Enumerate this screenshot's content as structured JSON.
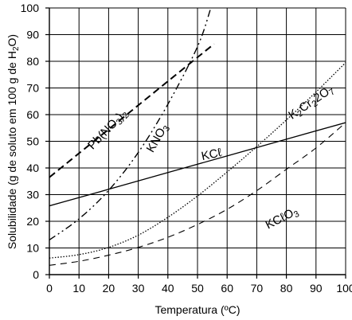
{
  "chart_data": {
    "type": "line",
    "title": "",
    "xlabel": "Temperatura (ºC)",
    "ylabel_parts": [
      "Solubilidade (g de soluto em 100 g de H",
      "2",
      "O)"
    ],
    "xlim": [
      0,
      100
    ],
    "ylim": [
      0,
      100
    ],
    "x_ticks": [
      0,
      10,
      20,
      30,
      40,
      50,
      60,
      70,
      80,
      90,
      100
    ],
    "y_ticks": [
      0,
      10,
      20,
      30,
      40,
      50,
      60,
      70,
      80,
      90,
      100
    ],
    "grid": true,
    "series": [
      {
        "key": "pb",
        "name_parts": [
          [
            "Pb(NO",
            false
          ],
          [
            "3",
            true
          ],
          [
            ")",
            false
          ],
          [
            "2",
            true
          ]
        ],
        "style": "dashed",
        "x": [
          0,
          10,
          20,
          30,
          40,
          50,
          55.6
        ],
        "y": [
          36.5,
          45.5,
          54.5,
          63.5,
          72.5,
          81.5,
          86.5
        ]
      },
      {
        "key": "kno3",
        "name_parts": [
          [
            "KNO",
            false
          ],
          [
            "3",
            true
          ]
        ],
        "style": "dashdot",
        "x": [
          0,
          10,
          20,
          30,
          40,
          50,
          54.5
        ],
        "y": [
          13,
          20.9,
          31.6,
          45.8,
          63.9,
          85.5,
          100
        ]
      },
      {
        "key": "kcl",
        "name_parts": [
          [
            "KC",
            false
          ],
          [
            "ℓ",
            false
          ]
        ],
        "style": "solid",
        "x": [
          0,
          20,
          40,
          60,
          80,
          100
        ],
        "y": [
          25.8,
          32,
          38.3,
          44.5,
          50.8,
          57
        ]
      },
      {
        "key": "k2cr2o7",
        "name_parts": [
          [
            "K",
            false
          ],
          [
            "2",
            true
          ],
          [
            "Cr",
            false
          ],
          [
            "2",
            true
          ],
          [
            "2O",
            false
          ],
          [
            "7",
            true
          ]
        ],
        "style": "dotted",
        "x": [
          0,
          10,
          20,
          30,
          40,
          50,
          60,
          70,
          80,
          90,
          100
        ],
        "y": [
          6.2,
          7.5,
          10.2,
          14.8,
          21.5,
          29.5,
          38.5,
          48,
          58,
          68.5,
          79.5
        ]
      },
      {
        "key": "kclo3",
        "name_parts": [
          [
            "KC",
            false
          ],
          [
            "ℓ",
            false
          ],
          [
            "O",
            false
          ],
          [
            "3",
            true
          ]
        ],
        "style": "longdash",
        "x": [
          0,
          10,
          20,
          30,
          40,
          50,
          60,
          70,
          80,
          90,
          100
        ],
        "y": [
          3.5,
          5,
          7.3,
          10.2,
          14,
          18.8,
          24.5,
          31.5,
          39.5,
          47.5,
          57
        ]
      }
    ],
    "annotations": [
      {
        "series": "pb",
        "x": 20.5,
        "y": 53.5,
        "angle": -46
      },
      {
        "series": "kno3",
        "x": 37.5,
        "y": 50.5,
        "angle": -60
      },
      {
        "series": "kcl",
        "x": 55,
        "y": 43.7,
        "angle": -12
      },
      {
        "series": "k2cr2o7",
        "x": 89,
        "y": 63.5,
        "angle": -34
      },
      {
        "series": "kclo3",
        "x": 79,
        "y": 20,
        "angle": -27
      }
    ]
  }
}
